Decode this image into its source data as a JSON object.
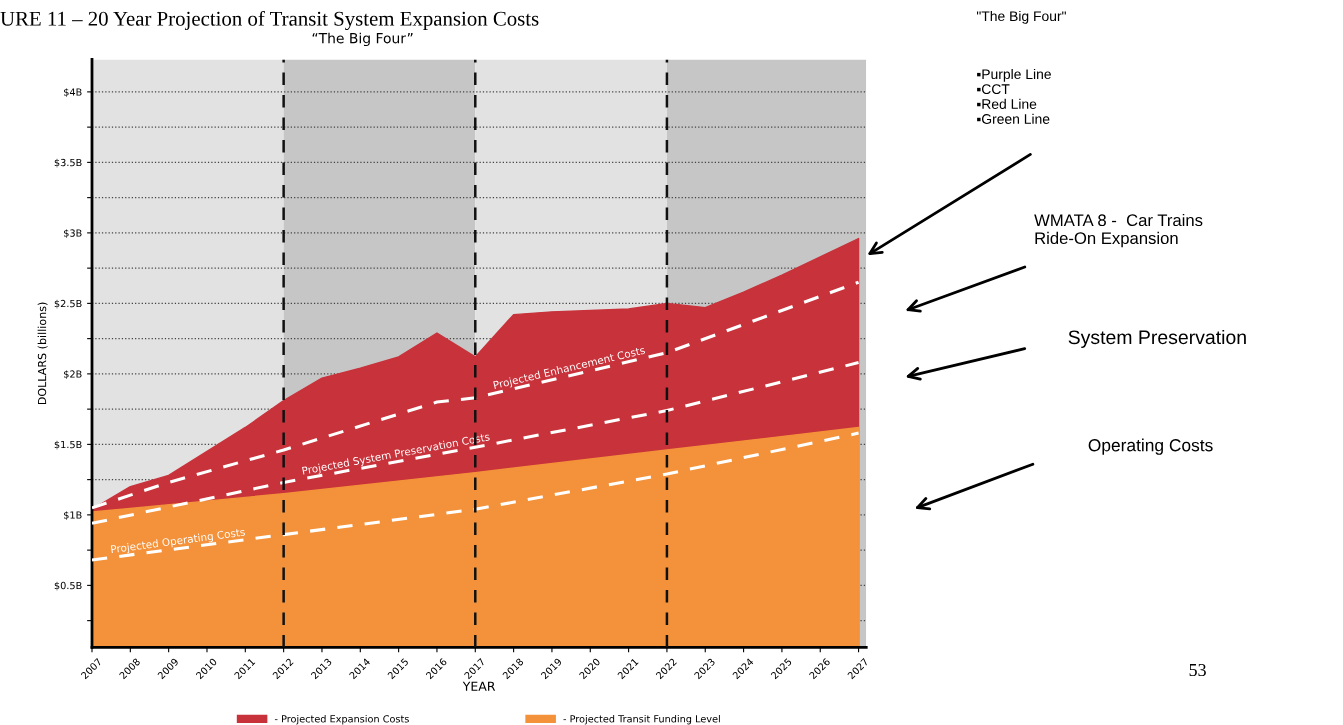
{
  "chart_data": {
    "type": "area",
    "title": "URE 11 – 20 Year Projection of Transit System Expansion Costs",
    "subtitle": "“The Big Four”",
    "xlabel": "YEAR",
    "ylabel": "DOLLARS (billions)",
    "xlim": [
      2007,
      2027.2
    ],
    "xticks": [
      2007,
      2008,
      2009,
      2010,
      2011,
      2012,
      2013,
      2014,
      2015,
      2016,
      2017,
      2018,
      2019,
      2020,
      2021,
      2022,
      2023,
      2024,
      2025,
      2026,
      2027
    ],
    "ylim": [
      0.06,
      4.23
    ],
    "yticks": [
      {
        "value": 0.25,
        "label": null
      },
      {
        "value": 0.5,
        "label": "$0.5B"
      },
      {
        "value": 0.75,
        "label": null
      },
      {
        "value": 1,
        "label": "$1B"
      },
      {
        "value": 1.25,
        "label": null
      },
      {
        "value": 1.5,
        "label": "$1.5B"
      },
      {
        "value": 1.75,
        "label": null
      },
      {
        "value": 2,
        "label": "$2B"
      },
      {
        "value": 2.25,
        "label": null
      },
      {
        "value": 2.5,
        "label": "$2.5B"
      },
      {
        "value": 2.75,
        "label": null
      },
      {
        "value": 3,
        "label": "$3B"
      },
      {
        "value": 3.25,
        "label": null
      },
      {
        "value": 3.5,
        "label": "$3.5B"
      },
      {
        "value": 3.75,
        "label": null
      },
      {
        "value": 4,
        "label": "$4B"
      }
    ],
    "grid": "y",
    "legend": "bottom",
    "series": [
      {
        "type": "area",
        "name": "- Projected Expansion Costs",
        "color": "#c8323a",
        "x": [
          2007,
          2008,
          2009,
          2010,
          2011,
          2012,
          2013,
          2014,
          2015,
          2016,
          2017,
          2018,
          2019,
          2020,
          2021,
          2022,
          2023,
          2024,
          2025,
          2026,
          2027
        ],
        "values": [
          1.04,
          1.2,
          1.28,
          1.45,
          1.62,
          1.81,
          1.97,
          2.04,
          2.12,
          2.29,
          2.12,
          2.42,
          2.44,
          2.45,
          2.46,
          2.5,
          2.47,
          2.58,
          2.7,
          2.83,
          2.96
        ]
      },
      {
        "name": "- Projected Transit Funding Level",
        "color": "#f3923a",
        "x": [
          2007,
          2012,
          2017,
          2022,
          2027
        ],
        "values": [
          1.02,
          1.15,
          1.3,
          1.46,
          1.62
        ]
      },
      {
        "type": "line",
        "line_style": "dashed",
        "name": "Projected Operating Costs",
        "color": "#ffffff",
        "x": [
          2007,
          2012,
          2017,
          2022,
          2027
        ],
        "values": [
          0.68,
          0.86,
          1.04,
          1.29,
          1.58
        ]
      },
      {
        "type": "line",
        "line_style": "dashed",
        "name": "Projected System Preservation Costs",
        "color": "#ffffff",
        "x": [
          2007,
          2012,
          2017,
          2022,
          2027
        ],
        "values": [
          0.94,
          1.23,
          1.48,
          1.74,
          2.08
        ]
      },
      {
        "type": "line",
        "line_style": "dashed",
        "name": "Projected Enhancement Costs",
        "color": "#ffffff",
        "x": [
          2007,
          2009,
          2012,
          2016,
          2017,
          2022,
          2027
        ],
        "values": [
          1.05,
          1.23,
          1.46,
          1.8,
          1.83,
          2.15,
          2.65
        ]
      }
    ],
    "bands": [
      {
        "axis": "x",
        "from": 2007,
        "to": 2012,
        "color": "#e2e2e2"
      },
      {
        "axis": "x",
        "from": 2012,
        "to": 2017,
        "color": "#c6c6c6"
      },
      {
        "axis": "x",
        "from": 2017,
        "to": 2022,
        "color": "#e2e2e2"
      },
      {
        "axis": "x",
        "from": 2022,
        "to": 2027.2,
        "color": "#c6c6c6"
      }
    ],
    "ref_lines": [
      {
        "axis": "x",
        "value": 2012,
        "color": "#111111",
        "line_style": "dashed"
      },
      {
        "axis": "x",
        "value": 2017,
        "color": "#111111",
        "line_style": "dashed"
      },
      {
        "axis": "x",
        "value": 2022,
        "color": "#111111",
        "line_style": "dashed"
      }
    ],
    "annotations": [
      "\"The Big Four\"",
      "▪Purple Line\n▪CCT\n▪Red Line\n▪Green Line",
      "WMATA 8 -  Car Trains\nRide-On Expansion",
      "System Preservation",
      "Operating Costs",
      "53"
    ]
  }
}
